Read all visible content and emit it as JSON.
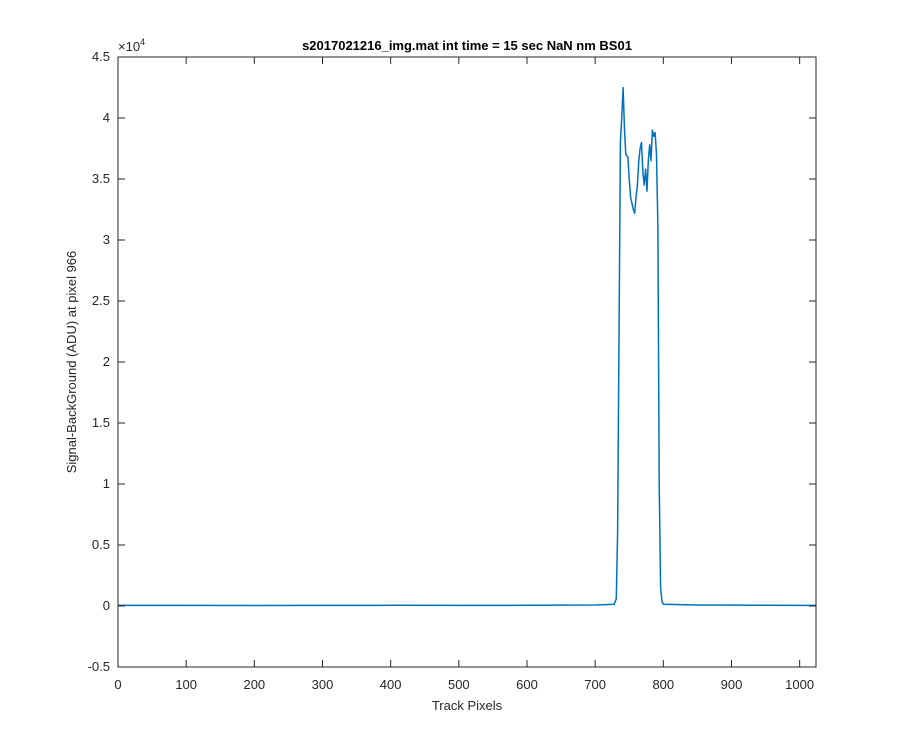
{
  "chart_data": {
    "type": "line",
    "title": "s2017021216_img.mat int time = 15 sec  NaN nm BS01",
    "xlabel": "Track Pixels",
    "ylabel": "Signal-BackGround (ADU) at pixel 966",
    "y_exponent_label": "×10",
    "y_exponent_power": "4",
    "xlim": [
      0,
      1024
    ],
    "ylim": [
      -5000,
      45000
    ],
    "x_ticks": [
      0,
      100,
      200,
      300,
      400,
      500,
      600,
      700,
      800,
      900,
      1000
    ],
    "x_tick_labels": [
      "0",
      "100",
      "200",
      "300",
      "400",
      "500",
      "600",
      "700",
      "800",
      "900",
      "1000"
    ],
    "y_ticks": [
      -5000,
      0,
      5000,
      10000,
      15000,
      20000,
      25000,
      30000,
      35000,
      40000,
      45000
    ],
    "y_tick_labels": [
      "-0.5",
      "0",
      "0.5",
      "1",
      "1.5",
      "2",
      "2.5",
      "3",
      "3.5",
      "4",
      "4.5"
    ],
    "grid": false,
    "series": [
      {
        "color": "#0072BD",
        "points": [
          [
            0,
            60
          ],
          [
            100,
            50
          ],
          [
            200,
            40
          ],
          [
            300,
            50
          ],
          [
            400,
            60
          ],
          [
            500,
            50
          ],
          [
            600,
            60
          ],
          [
            700,
            80
          ],
          [
            728,
            150
          ],
          [
            731,
            600
          ],
          [
            733,
            6000
          ],
          [
            735,
            22000
          ],
          [
            737,
            38000
          ],
          [
            739,
            40000
          ],
          [
            741,
            42500
          ],
          [
            743,
            39000
          ],
          [
            745,
            37000
          ],
          [
            748,
            36800
          ],
          [
            750,
            35000
          ],
          [
            752,
            33500
          ],
          [
            754,
            33000
          ],
          [
            756,
            32500
          ],
          [
            758,
            32200
          ],
          [
            760,
            33500
          ],
          [
            762,
            34500
          ],
          [
            764,
            36500
          ],
          [
            766,
            37500
          ],
          [
            768,
            38000
          ],
          [
            770,
            35500
          ],
          [
            772,
            34500
          ],
          [
            774,
            35800
          ],
          [
            776,
            34000
          ],
          [
            778,
            36500
          ],
          [
            780,
            37800
          ],
          [
            782,
            36500
          ],
          [
            784,
            39000
          ],
          [
            786,
            38500
          ],
          [
            788,
            38800
          ],
          [
            790,
            37000
          ],
          [
            792,
            31000
          ],
          [
            794,
            10000
          ],
          [
            796,
            1500
          ],
          [
            798,
            400
          ],
          [
            800,
            150
          ],
          [
            850,
            80
          ],
          [
            900,
            70
          ],
          [
            950,
            60
          ],
          [
            1000,
            50
          ],
          [
            1024,
            50
          ]
        ]
      }
    ]
  }
}
